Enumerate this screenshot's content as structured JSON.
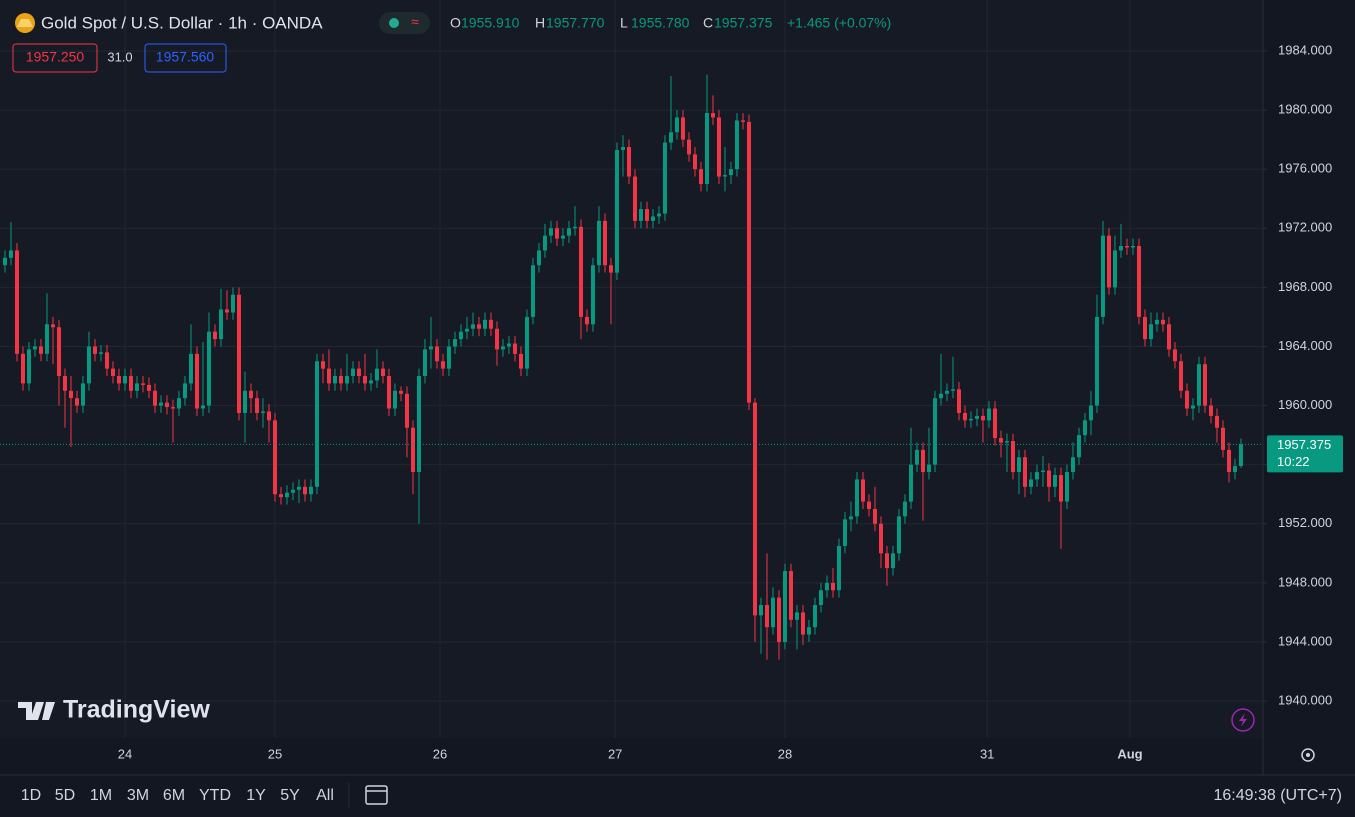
{
  "chart_data": {
    "type": "candlestick",
    "title": "Gold Spot / U.S. Dollar · 1h · OANDA",
    "ohlc_legend": [
      {
        "label": "O",
        "value": "1955.910"
      },
      {
        "label": "H",
        "value": "1957.770"
      },
      {
        "label": "L",
        "value": "1955.780"
      },
      {
        "label": "C",
        "value": "1957.375"
      }
    ],
    "change": "+1.465 (+0.07%)",
    "bid": "1957.250",
    "spread": "31.0",
    "ask": "1957.560",
    "up_color": "#089981",
    "down_color": "#f23645",
    "grid": true,
    "last_price": 1957.375,
    "countdown": "10:22",
    "xlim": [
      -0.83,
      209.67
    ],
    "xticks": [
      {
        "value": 20,
        "label": "24"
      },
      {
        "value": 45,
        "label": "25"
      },
      {
        "value": 72.5,
        "label": "26"
      },
      {
        "value": 101.7,
        "label": "27"
      },
      {
        "value": 130,
        "label": "28"
      },
      {
        "value": 163.7,
        "label": "31"
      },
      {
        "value": 187.5,
        "label": "Aug"
      }
    ],
    "ylim": [
      1937.5,
      1987.45
    ],
    "yticks": [
      {
        "value": 1940,
        "label": "1940.000"
      },
      {
        "value": 1944,
        "label": "1944.000"
      },
      {
        "value": 1948,
        "label": "1948.000"
      },
      {
        "value": 1952,
        "label": "1952.000"
      },
      {
        "value": 1956,
        "label": "1956.000"
      },
      {
        "value": 1960,
        "label": "1960.000"
      },
      {
        "value": 1964,
        "label": "1964.000"
      },
      {
        "value": 1968,
        "label": "1968.000"
      },
      {
        "value": 1972,
        "label": "1972.000"
      },
      {
        "value": 1976,
        "label": "1976.000"
      },
      {
        "value": 1980,
        "label": "1980.000"
      },
      {
        "value": 1984,
        "label": "1984.000"
      }
    ],
    "open": [
      1969.5,
      1970,
      1970.5,
      1963.5,
      1961.5,
      1963.8,
      1964,
      1963.5,
      1965.5,
      1965.3,
      1962,
      1961,
      1960.5,
      1960,
      1961.5,
      1964,
      1963.5,
      1963.6,
      1962.5,
      1962,
      1961.5,
      1962,
      1961,
      1961.5,
      1961.4,
      1961,
      1960,
      1960.2,
      1959.9,
      1959.8,
      1960.5,
      1961.5,
      1963.5,
      1959.8,
      1960,
      1965,
      1964.5,
      1966.5,
      1966.3,
      1967.5,
      1959.5,
      1961,
      1960.5,
      1959.5,
      1959.6,
      1959,
      1954,
      1953.8,
      1954.1,
      1954.3,
      1954.5,
      1954,
      1954.5,
      1963,
      1962.5,
      1961.5,
      1962,
      1961.5,
      1962,
      1962.5,
      1962,
      1961.5,
      1961.7,
      1962.5,
      1962,
      1959.8,
      1961,
      1960.8,
      1958.5,
      1955.5,
      1962,
      1963.8,
      1964,
      1963,
      1962.5,
      1964,
      1964.5,
      1965,
      1965.2,
      1965.5,
      1965.2,
      1965.8,
      1965.2,
      1963.8,
      1964,
      1964.2,
      1963.5,
      1962.5,
      1966,
      1969.5,
      1970.5,
      1971.5,
      1972,
      1971.3,
      1971.5,
      1972,
      1972.1,
      1966,
      1965.5,
      1969.5,
      1972.5,
      1969.5,
      1969,
      1977.3,
      1977.5,
      1975.5,
      1972.5,
      1973.3,
      1972.5,
      1972.8,
      1973,
      1977.8,
      1978.5,
      1979.5,
      1978,
      1977,
      1976,
      1975,
      1979.8,
      1979.5,
      1975.5,
      1975.6,
      1976,
      1979.3,
      1979.2,
      1960.2,
      1945.8,
      1946.5,
      1945,
      1947,
      1944,
      1948.8,
      1945.5,
      1946,
      1944.5,
      1945,
      1946.5,
      1947.5,
      1948,
      1947.5,
      1950.5,
      1952.3,
      1952.5,
      1955,
      1953.5,
      1953,
      1952,
      1950,
      1949,
      1950,
      1952.5,
      1953.5,
      1956,
      1957,
      1955.5,
      1956,
      1960.5,
      1960.8,
      1961,
      1961.1,
      1959.5,
      1959,
      1959.1,
      1959.3,
      1959,
      1959.8,
      1957.8,
      1957.5,
      1957.6,
      1955.5,
      1956.5,
      1954.5,
      1955,
      1955.5,
      1955.6,
      1954.5,
      1955.3,
      1953.5,
      1955.5,
      1956.5,
      1958,
      1959,
      1960,
      1966,
      1971.5,
      1968,
      1970.5,
      1970.8,
      1970.7,
      1970.8,
      1966,
      1964.5,
      1965.5,
      1965.8,
      1965.5,
      1963.8,
      1963,
      1961,
      1959.8,
      1960,
      1962.8,
      1960,
      1959.3,
      1958.5,
      1957,
      1955.5,
      1955.91
    ],
    "high": [
      1970.5,
      1972.4,
      1971,
      1964,
      1964.3,
      1964.5,
      1964.5,
      1967.6,
      1966,
      1965.8,
      1962.5,
      1962,
      1961,
      1962,
      1965,
      1964.5,
      1964.1,
      1964.1,
      1963,
      1962.5,
      1962.5,
      1962.5,
      1962,
      1962,
      1961.9,
      1961.5,
      1960.7,
      1960.7,
      1960.4,
      1961,
      1962,
      1965.5,
      1964,
      1964.3,
      1966.3,
      1965.5,
      1967.9,
      1967.8,
      1968,
      1968,
      1962.3,
      1961.5,
      1961,
      1960.5,
      1960.1,
      1959.5,
      1954.5,
      1954.6,
      1954.8,
      1955,
      1955,
      1955,
      1963.5,
      1963.5,
      1963.8,
      1962.5,
      1962.5,
      1963.5,
      1963,
      1963,
      1963.5,
      1962.2,
      1963.8,
      1963,
      1962.5,
      1961.5,
      1961.3,
      1961.3,
      1959,
      1962.5,
      1964.5,
      1966,
      1964.5,
      1963.5,
      1964.5,
      1965,
      1965.5,
      1966,
      1966.3,
      1966,
      1966.3,
      1966.3,
      1965.7,
      1964.5,
      1964.7,
      1964.7,
      1964,
      1966.5,
      1970,
      1971,
      1972.3,
      1972.5,
      1972.5,
      1972,
      1972.5,
      1973.5,
      1972.6,
      1966.5,
      1970,
      1973.5,
      1973,
      1970,
      1977.8,
      1978.3,
      1978,
      1976,
      1973.8,
      1973.8,
      1973.3,
      1973.5,
      1978.3,
      1982.3,
      1980,
      1980,
      1978.5,
      1977.5,
      1976.5,
      1982.4,
      1981,
      1980,
      1977.5,
      1976.5,
      1979.8,
      1979.8,
      1979.7,
      1960.5,
      1947,
      1950,
      1947.7,
      1947.5,
      1949.3,
      1949.3,
      1946.5,
      1946.5,
      1945.5,
      1947,
      1948,
      1948.5,
      1949,
      1951,
      1952.8,
      1953.5,
      1955.5,
      1955.5,
      1954,
      1954.5,
      1952.5,
      1950.5,
      1950.5,
      1953,
      1954,
      1958.5,
      1957.5,
      1957.5,
      1958.5,
      1961,
      1963.5,
      1961.5,
      1963.3,
      1961.6,
      1960,
      1959.6,
      1959.8,
      1959.8,
      1960.3,
      1960.3,
      1958.3,
      1958.1,
      1958.1,
      1957,
      1957,
      1955.5,
      1956,
      1956.6,
      1956.1,
      1955.8,
      1955.8,
      1956,
      1957.5,
      1958.5,
      1959.5,
      1961,
      1967.5,
      1972.5,
      1972,
      1971.5,
      1972.3,
      1971.3,
      1971.3,
      1971.3,
      1966.5,
      1966.3,
      1966.3,
      1966.3,
      1966,
      1964.3,
      1963.5,
      1961.5,
      1960.5,
      1963.3,
      1963.3,
      1960.5,
      1959.8,
      1959,
      1957.5,
      1956.4,
      1957.77
    ],
    "low": [
      1969,
      1969.5,
      1963,
      1961,
      1961,
      1963.3,
      1963,
      1963,
      1962.8,
      1960,
      1958.5,
      1957.2,
      1959.5,
      1959.5,
      1961,
      1963,
      1963,
      1962,
      1961.5,
      1961,
      1961,
      1960.5,
      1960.5,
      1960.9,
      1960.5,
      1959.5,
      1959.5,
      1959.4,
      1957.5,
      1959.3,
      1960,
      1961,
      1959.3,
      1959.3,
      1959.5,
      1964,
      1964,
      1965.8,
      1965.8,
      1959,
      1957.5,
      1959.5,
      1959,
      1958.5,
      1957.5,
      1953.5,
      1953.3,
      1953.3,
      1953.6,
      1953.4,
      1953.5,
      1953.5,
      1954,
      1961.5,
      1961,
      1961,
      1961,
      1961,
      1961.5,
      1961.5,
      1961,
      1961,
      1961.2,
      1961.5,
      1959.3,
      1959.3,
      1960.3,
      1956.5,
      1954,
      1952,
      1961.5,
      1962.5,
      1962.5,
      1962,
      1962,
      1963.5,
      1964,
      1964.5,
      1964.7,
      1964.7,
      1964.7,
      1964.7,
      1962.7,
      1963.3,
      1963.5,
      1963,
      1962,
      1962,
      1965.5,
      1969,
      1970,
      1971,
      1970.8,
      1970.8,
      1971,
      1971.5,
      1964.5,
      1965,
      1965,
      1969,
      1969,
      1965.5,
      1968.5,
      1975.5,
      1975,
      1972,
      1972,
      1972,
      1972,
      1972.3,
      1972.5,
      1977.3,
      1978,
      1977.5,
      1976.5,
      1975.5,
      1974.5,
      1974.5,
      1979,
      1975,
      1974.5,
      1975,
      1975.5,
      1978.7,
      1959.7,
      1944,
      1943.2,
      1942.8,
      1944.5,
      1942.8,
      1943.5,
      1945,
      1943.5,
      1943.8,
      1944,
      1944.5,
      1946,
      1947,
      1947,
      1947,
      1950,
      1951.5,
      1952,
      1953,
      1952.5,
      1951.5,
      1949,
      1947.8,
      1948.5,
      1949.5,
      1952,
      1953,
      1955.5,
      1952.2,
      1955,
      1955.5,
      1960,
      1960.3,
      1960.5,
      1959,
      1958.5,
      1958.5,
      1958.6,
      1957.5,
      1958.5,
      1957.3,
      1956.5,
      1955.5,
      1955,
      1954,
      1953.8,
      1954,
      1954.5,
      1954.5,
      1953.5,
      1953.8,
      1950.3,
      1953,
      1955,
      1956,
      1957.5,
      1958,
      1959.5,
      1965.5,
      1967.5,
      1967.5,
      1970,
      1970.2,
      1970.2,
      1965.5,
      1964,
      1964,
      1965,
      1965,
      1963.3,
      1962.5,
      1960.5,
      1959.3,
      1959,
      1959.5,
      1959.5,
      1958.8,
      1957.5,
      1956.5,
      1954.8,
      1955,
      1955.78
    ],
    "close": [
      1970,
      1970.5,
      1963.5,
      1961.5,
      1963.8,
      1964,
      1963.5,
      1965.5,
      1965.3,
      1962,
      1961,
      1960.5,
      1960,
      1961.5,
      1964,
      1963.5,
      1963.6,
      1962.5,
      1962,
      1961.5,
      1962,
      1961,
      1961.5,
      1961.4,
      1961,
      1960,
      1960.2,
      1959.9,
      1959.8,
      1960.5,
      1961.5,
      1963.5,
      1959.8,
      1960,
      1965,
      1964.5,
      1966.5,
      1966.3,
      1967.5,
      1959.5,
      1961,
      1960.5,
      1959.5,
      1959.6,
      1959,
      1954,
      1953.8,
      1954.1,
      1954.3,
      1954.5,
      1954,
      1954.5,
      1963,
      1962.5,
      1961.5,
      1962,
      1961.5,
      1962,
      1962.5,
      1962,
      1961.5,
      1961.7,
      1962.5,
      1962,
      1959.8,
      1961,
      1960.8,
      1958.5,
      1955.5,
      1962,
      1963.8,
      1964,
      1963,
      1962.5,
      1964,
      1964.5,
      1965,
      1965.2,
      1965.5,
      1965.2,
      1965.8,
      1965.2,
      1963.8,
      1964,
      1964.2,
      1963.5,
      1962.5,
      1966,
      1969.5,
      1970.5,
      1971.5,
      1972,
      1971.3,
      1971.5,
      1972,
      1972.1,
      1966,
      1965.5,
      1969.5,
      1972.5,
      1969.5,
      1969,
      1977.3,
      1977.5,
      1975.5,
      1972.5,
      1973.3,
      1972.5,
      1972.8,
      1973,
      1977.8,
      1978.5,
      1979.5,
      1978,
      1977,
      1976,
      1975,
      1979.8,
      1979.5,
      1975.5,
      1975.6,
      1976,
      1979.3,
      1979.2,
      1960.2,
      1945.8,
      1946.5,
      1945,
      1947,
      1944,
      1948.8,
      1945.5,
      1946,
      1944.5,
      1945,
      1946.5,
      1947.5,
      1948,
      1947.5,
      1950.5,
      1952.3,
      1952.5,
      1955,
      1953.5,
      1953,
      1952,
      1950,
      1949,
      1950,
      1952.5,
      1953.5,
      1956,
      1957,
      1955.5,
      1956,
      1960.5,
      1960.8,
      1961,
      1961.1,
      1959.5,
      1959,
      1959.1,
      1959.3,
      1959,
      1959.8,
      1957.8,
      1957.5,
      1957.6,
      1955.5,
      1956.5,
      1954.5,
      1955,
      1955.5,
      1955.6,
      1954.5,
      1955.3,
      1953.5,
      1955.5,
      1956.5,
      1958,
      1959,
      1960,
      1966,
      1971.5,
      1968,
      1970.5,
      1970.8,
      1970.7,
      1970.8,
      1966,
      1964.5,
      1965.5,
      1965.8,
      1965.5,
      1963.8,
      1963,
      1961,
      1959.8,
      1960,
      1962.8,
      1960,
      1959.3,
      1958.5,
      1957,
      1955.5,
      1955.9,
      1957.375
    ]
  },
  "toolbar": {
    "ranges": [
      "1D",
      "5D",
      "1M",
      "3M",
      "6M",
      "YTD",
      "1Y",
      "5Y",
      "All"
    ],
    "clock": "16:49:38 (UTC+7)",
    "watermark": "TradingView"
  }
}
